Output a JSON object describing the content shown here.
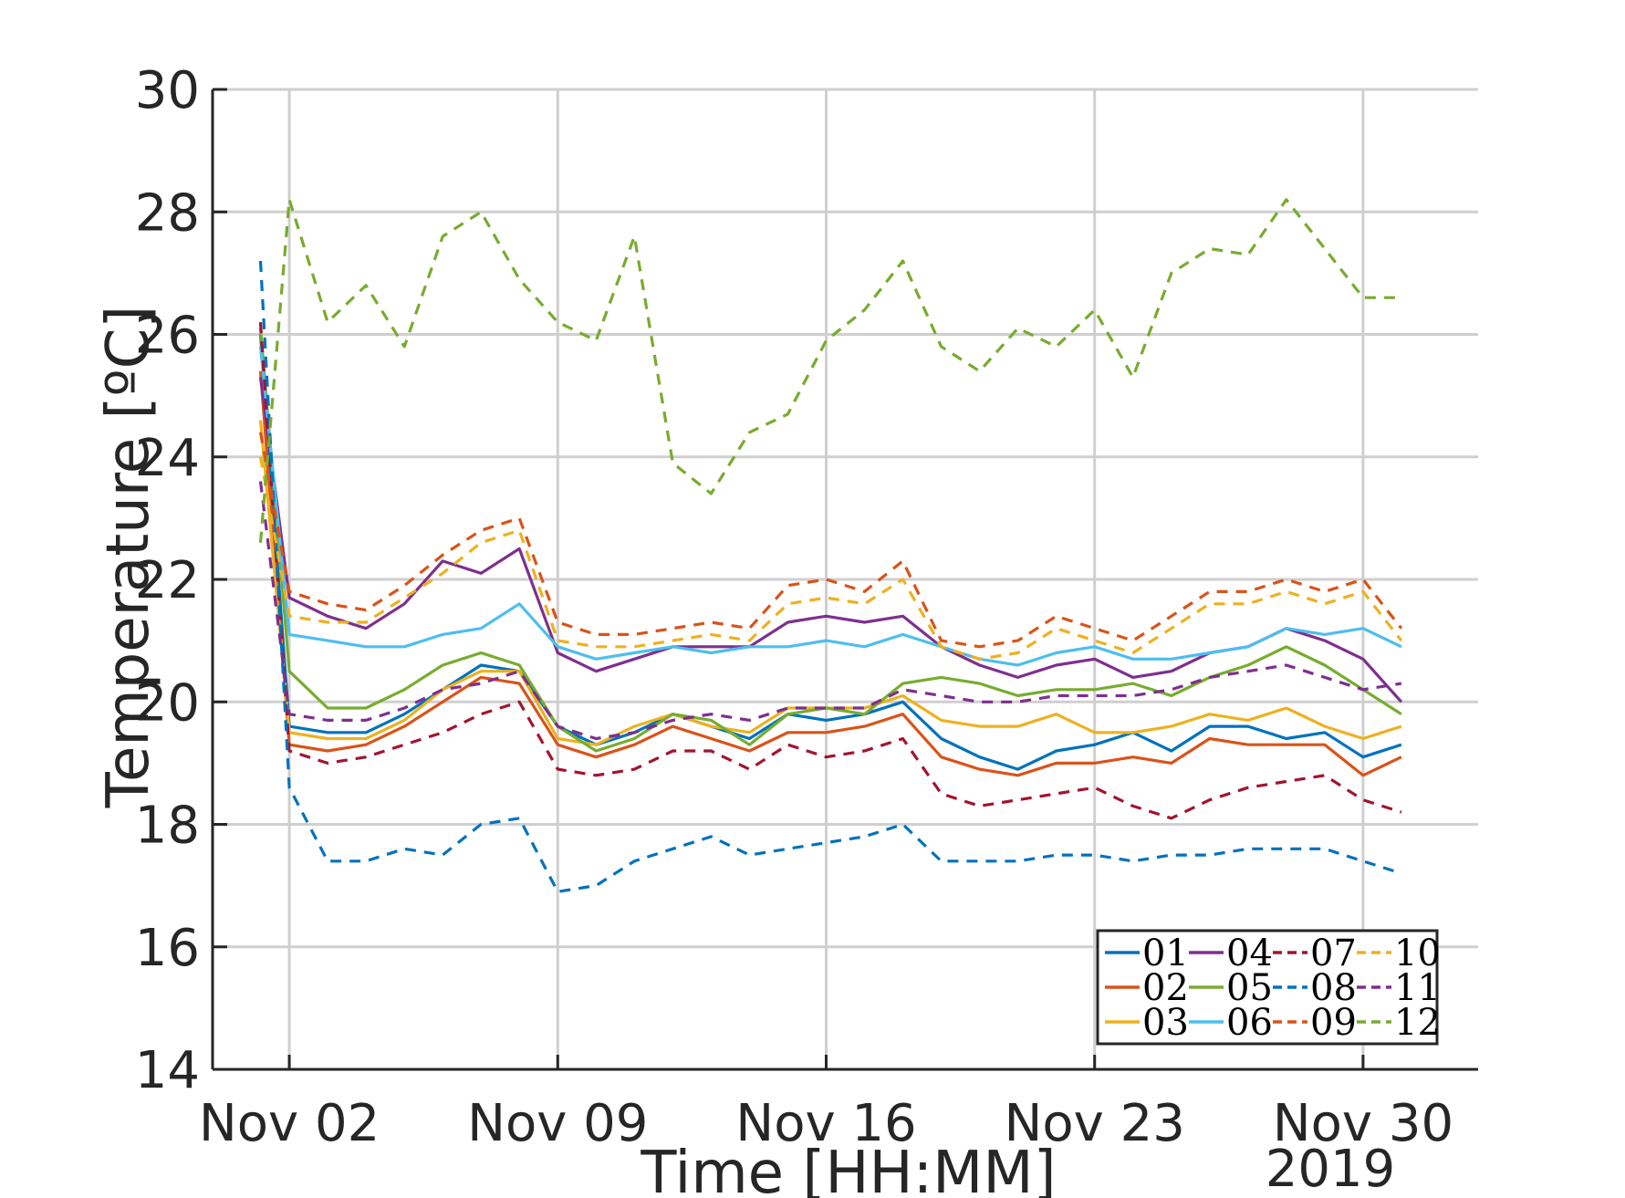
{
  "chart_data": {
    "type": "line",
    "xlabel": "Time [HH:MM]",
    "ylabel": "Temperature [ºC]",
    "x_tick_labels": [
      "Nov 02",
      "Nov 09",
      "Nov 16",
      "Nov 23",
      "Nov 30"
    ],
    "x_tick_dates": [
      "2019-11-02",
      "2019-11-09",
      "2019-11-16",
      "2019-11-23",
      "2019-11-30"
    ],
    "x_secondary_label": "2019",
    "x_range": [
      "2019-10-31T00:00",
      "2019-12-03T00:00"
    ],
    "y_tick_labels": [
      "14",
      "16",
      "18",
      "20",
      "22",
      "24",
      "26",
      "28",
      "30"
    ],
    "ylim": [
      14,
      30
    ],
    "grid": true,
    "legend_position": "bottom-right",
    "x": [
      "2019-11-01T06:00",
      "2019-11-02T00:00",
      "2019-11-03T00:00",
      "2019-11-04T00:00",
      "2019-11-05T00:00",
      "2019-11-06T00:00",
      "2019-11-07T00:00",
      "2019-11-08T00:00",
      "2019-11-09T00:00",
      "2019-11-10T00:00",
      "2019-11-11T00:00",
      "2019-11-12T00:00",
      "2019-11-13T00:00",
      "2019-11-14T00:00",
      "2019-11-15T00:00",
      "2019-11-16T00:00",
      "2019-11-17T00:00",
      "2019-11-18T00:00",
      "2019-11-19T00:00",
      "2019-11-20T00:00",
      "2019-11-21T00:00",
      "2019-11-22T00:00",
      "2019-11-23T00:00",
      "2019-11-24T00:00",
      "2019-11-25T00:00",
      "2019-11-26T00:00",
      "2019-11-27T00:00",
      "2019-11-28T00:00",
      "2019-11-29T00:00",
      "2019-11-30T00:00",
      "2019-12-01T00:00"
    ],
    "series": [
      {
        "name": "01",
        "color": "#0072BD",
        "dash": "solid",
        "values": [
          26.0,
          19.6,
          19.5,
          19.5,
          19.8,
          20.2,
          20.6,
          20.5,
          19.6,
          19.3,
          19.5,
          19.8,
          19.6,
          19.4,
          19.8,
          19.7,
          19.8,
          20.0,
          19.4,
          19.1,
          18.9,
          19.2,
          19.3,
          19.5,
          19.2,
          19.6,
          19.6,
          19.4,
          19.5,
          19.1,
          19.3
        ]
      },
      {
        "name": "02",
        "color": "#D95319",
        "dash": "solid",
        "values": [
          25.4,
          19.3,
          19.2,
          19.3,
          19.6,
          20.0,
          20.4,
          20.3,
          19.3,
          19.1,
          19.3,
          19.6,
          19.4,
          19.2,
          19.5,
          19.5,
          19.6,
          19.8,
          19.1,
          18.9,
          18.8,
          19.0,
          19.0,
          19.1,
          19.0,
          19.4,
          19.3,
          19.3,
          19.3,
          18.8,
          19.1
        ]
      },
      {
        "name": "03",
        "color": "#EDB120",
        "dash": "solid",
        "values": [
          24.6,
          19.5,
          19.4,
          19.4,
          19.7,
          20.2,
          20.5,
          20.5,
          19.4,
          19.3,
          19.6,
          19.8,
          19.6,
          19.5,
          19.9,
          19.9,
          19.9,
          20.1,
          19.7,
          19.6,
          19.6,
          19.8,
          19.5,
          19.5,
          19.6,
          19.8,
          19.7,
          19.9,
          19.6,
          19.4,
          19.6
        ]
      },
      {
        "name": "04",
        "color": "#7E2F8E",
        "dash": "solid",
        "values": [
          25.3,
          21.7,
          21.4,
          21.2,
          21.6,
          22.3,
          22.1,
          22.5,
          20.8,
          20.5,
          20.7,
          20.9,
          20.9,
          20.9,
          21.3,
          21.4,
          21.3,
          21.4,
          20.9,
          20.6,
          20.4,
          20.6,
          20.7,
          20.4,
          20.5,
          20.8,
          20.9,
          21.2,
          21.0,
          20.7,
          20.0
        ]
      },
      {
        "name": "05",
        "color": "#77AC30",
        "dash": "solid",
        "values": [
          26.1,
          20.5,
          19.9,
          19.9,
          20.2,
          20.6,
          20.8,
          20.6,
          19.6,
          19.2,
          19.4,
          19.8,
          19.7,
          19.3,
          19.8,
          19.9,
          19.8,
          20.3,
          20.4,
          20.3,
          20.1,
          20.2,
          20.2,
          20.3,
          20.1,
          20.4,
          20.6,
          20.9,
          20.6,
          20.2,
          19.8
        ]
      },
      {
        "name": "06",
        "color": "#4DBEEE",
        "dash": "solid",
        "values": [
          25.8,
          21.1,
          21.0,
          20.9,
          20.9,
          21.1,
          21.2,
          21.6,
          20.9,
          20.7,
          20.8,
          20.9,
          20.8,
          20.9,
          20.9,
          21.0,
          20.9,
          21.1,
          20.9,
          20.7,
          20.6,
          20.8,
          20.9,
          20.7,
          20.7,
          20.8,
          20.9,
          21.2,
          21.1,
          21.2,
          20.9
        ]
      },
      {
        "name": "07",
        "color": "#A2142F",
        "dash": "dashed",
        "values": [
          26.2,
          19.2,
          19.0,
          19.1,
          19.3,
          19.5,
          19.8,
          20.0,
          18.9,
          18.8,
          18.9,
          19.2,
          19.2,
          18.9,
          19.3,
          19.1,
          19.2,
          19.4,
          18.5,
          18.3,
          18.4,
          18.5,
          18.6,
          18.3,
          18.1,
          18.4,
          18.6,
          18.7,
          18.8,
          18.4,
          18.2
        ]
      },
      {
        "name": "08",
        "color": "#0072BD",
        "dash": "dashed",
        "values": [
          27.2,
          18.6,
          17.4,
          17.4,
          17.6,
          17.5,
          18.0,
          18.1,
          16.9,
          17.0,
          17.4,
          17.6,
          17.8,
          17.5,
          17.6,
          17.7,
          17.8,
          18.0,
          17.4,
          17.4,
          17.4,
          17.5,
          17.5,
          17.4,
          17.5,
          17.5,
          17.6,
          17.6,
          17.6,
          17.4,
          17.2
        ]
      },
      {
        "name": "09",
        "color": "#D95319",
        "dash": "dashed",
        "values": [
          24.4,
          21.8,
          21.6,
          21.5,
          21.9,
          22.4,
          22.8,
          23.0,
          21.3,
          21.1,
          21.1,
          21.2,
          21.3,
          21.2,
          21.9,
          22.0,
          21.8,
          22.3,
          21.0,
          20.9,
          21.0,
          21.4,
          21.2,
          21.0,
          21.4,
          21.8,
          21.8,
          22.0,
          21.8,
          22.0,
          21.2
        ]
      },
      {
        "name": "10",
        "color": "#EDB120",
        "dash": "dashed",
        "values": [
          24.0,
          21.4,
          21.3,
          21.3,
          21.7,
          22.1,
          22.6,
          22.8,
          21.0,
          20.9,
          20.9,
          21.0,
          21.1,
          21.0,
          21.6,
          21.7,
          21.6,
          22.0,
          20.9,
          20.7,
          20.8,
          21.2,
          21.0,
          20.8,
          21.2,
          21.6,
          21.6,
          21.8,
          21.6,
          21.8,
          21.0
        ]
      },
      {
        "name": "11",
        "color": "#7E2F8E",
        "dash": "dashed",
        "values": [
          23.6,
          19.8,
          19.7,
          19.7,
          19.9,
          20.2,
          20.3,
          20.5,
          19.6,
          19.4,
          19.5,
          19.7,
          19.8,
          19.7,
          19.9,
          19.9,
          19.9,
          20.2,
          20.1,
          20.0,
          20.0,
          20.1,
          20.1,
          20.1,
          20.2,
          20.4,
          20.5,
          20.6,
          20.4,
          20.2,
          20.3
        ]
      },
      {
        "name": "12",
        "color": "#77AC30",
        "dash": "dashed",
        "values": [
          22.6,
          28.2,
          26.2,
          26.8,
          25.8,
          27.6,
          28.0,
          26.9,
          26.2,
          25.9,
          27.6,
          23.9,
          23.4,
          24.4,
          24.7,
          25.9,
          26.4,
          27.2,
          25.8,
          25.4,
          26.1,
          25.8,
          26.4,
          25.3,
          27.0,
          27.4,
          27.3,
          28.2,
          27.4,
          26.6,
          26.6
        ]
      }
    ]
  }
}
